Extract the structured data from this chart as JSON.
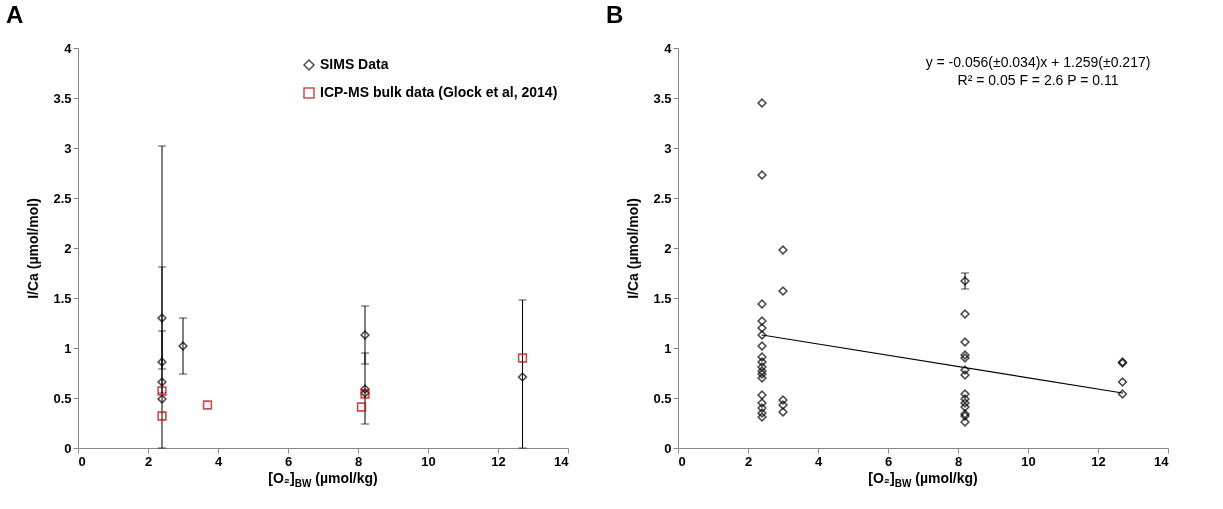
{
  "chart_data": [
    {
      "type": "scatter",
      "title": "A",
      "xlabel": "[O₂]$_{BW}$ (µmol/kg)",
      "ylabel": "I/Ca (µmol/mol)",
      "xlim": [
        0,
        14
      ],
      "xticks": [
        0,
        2,
        4,
        6,
        8,
        10,
        12,
        14
      ],
      "ylim": [
        0,
        4
      ],
      "yticks": [
        0,
        0.5,
        1,
        1.5,
        2,
        2.5,
        3,
        3.5,
        4
      ],
      "grid": false,
      "legend": "top right",
      "series": [
        {
          "name": "SIMS Data",
          "marker": "diamond",
          "color": "#000000",
          "x": [
            2.4,
            2.4,
            2.4,
            2.4,
            3.0,
            8.2,
            8.2,
            8.2,
            12.7
          ],
          "values": [
            1.3,
            0.86,
            0.66,
            0.49,
            1.02,
            1.13,
            0.59,
            0.55,
            0.71
          ],
          "errors": [
            [
              0.79,
              1.81
            ],
            [
              0.55,
              1.17
            ],
            null,
            [
              0,
              3.02
            ],
            [
              0.74,
              1.3
            ],
            [
              0.84,
              1.42
            ],
            [
              0.24,
              0.95
            ],
            null,
            [
              0,
              1.48
            ]
          ]
        },
        {
          "name": "ICP-MS bulk data (Glock et al, 2014)",
          "marker": "square",
          "color": "#c00000",
          "x": [
            2.4,
            2.4,
            3.7,
            8.1,
            8.2,
            12.7
          ],
          "values": [
            0.57,
            0.32,
            0.43,
            0.41,
            0.54,
            0.9
          ]
        }
      ]
    },
    {
      "type": "scatter",
      "title": "B",
      "xlabel": "[O₂]$_{BW}$ (µmol/kg)",
      "ylabel": "I/Ca (µmol/mol)",
      "xlim": [
        0,
        14
      ],
      "xticks": [
        0,
        2,
        4,
        6,
        8,
        10,
        12,
        14
      ],
      "ylim": [
        0,
        4
      ],
      "yticks": [
        0,
        0.5,
        1,
        1.5,
        2,
        2.5,
        3,
        3.5,
        4
      ],
      "grid": false,
      "annotations": [
        "y = -0.056(±0.034)x + 1.259(±0.217)",
        "R² = 0.05 F = 2.6 P = 0.11"
      ],
      "series": [
        {
          "marker": "diamond",
          "color": "#000000",
          "x": [
            2.4,
            2.4,
            2.4,
            2.4,
            2.4,
            2.4,
            2.4,
            2.4,
            2.4,
            2.4,
            2.4,
            2.4,
            2.4,
            2.4,
            2.4,
            2.4,
            2.4,
            2.4,
            3.0,
            3.0,
            3.0,
            3.0,
            3.0,
            8.2,
            8.2,
            8.2,
            8.2,
            8.2,
            8.2,
            8.2,
            8.2,
            8.2,
            8.2,
            8.2,
            8.2,
            8.2,
            8.2,
            12.7,
            12.7,
            12.7,
            12.7
          ],
          "values": [
            3.45,
            2.73,
            1.44,
            1.27,
            1.2,
            1.13,
            1.02,
            0.91,
            0.86,
            0.81,
            0.77,
            0.74,
            0.7,
            0.53,
            0.45,
            0.4,
            0.35,
            0.31,
            1.98,
            1.57,
            0.48,
            0.43,
            0.36,
            1.67,
            1.34,
            1.06,
            0.93,
            0.9,
            0.78,
            0.73,
            0.54,
            0.49,
            0.45,
            0.41,
            0.34,
            0.32,
            0.26,
            0.86,
            0.85,
            0.66,
            0.54
          ],
          "errors": [
            null,
            null,
            null,
            null,
            null,
            null,
            null,
            null,
            null,
            null,
            null,
            null,
            null,
            null,
            null,
            null,
            null,
            null,
            null,
            null,
            null,
            null,
            null,
            0.08,
            null,
            null,
            null,
            null,
            null,
            null,
            null,
            null,
            null,
            null,
            null,
            null,
            null,
            null,
            null,
            null,
            null
          ]
        },
        {
          "type": "line",
          "color": "#000000",
          "x": [
            2.4,
            12.7
          ],
          "values": [
            1.13,
            0.55
          ]
        }
      ]
    }
  ]
}
